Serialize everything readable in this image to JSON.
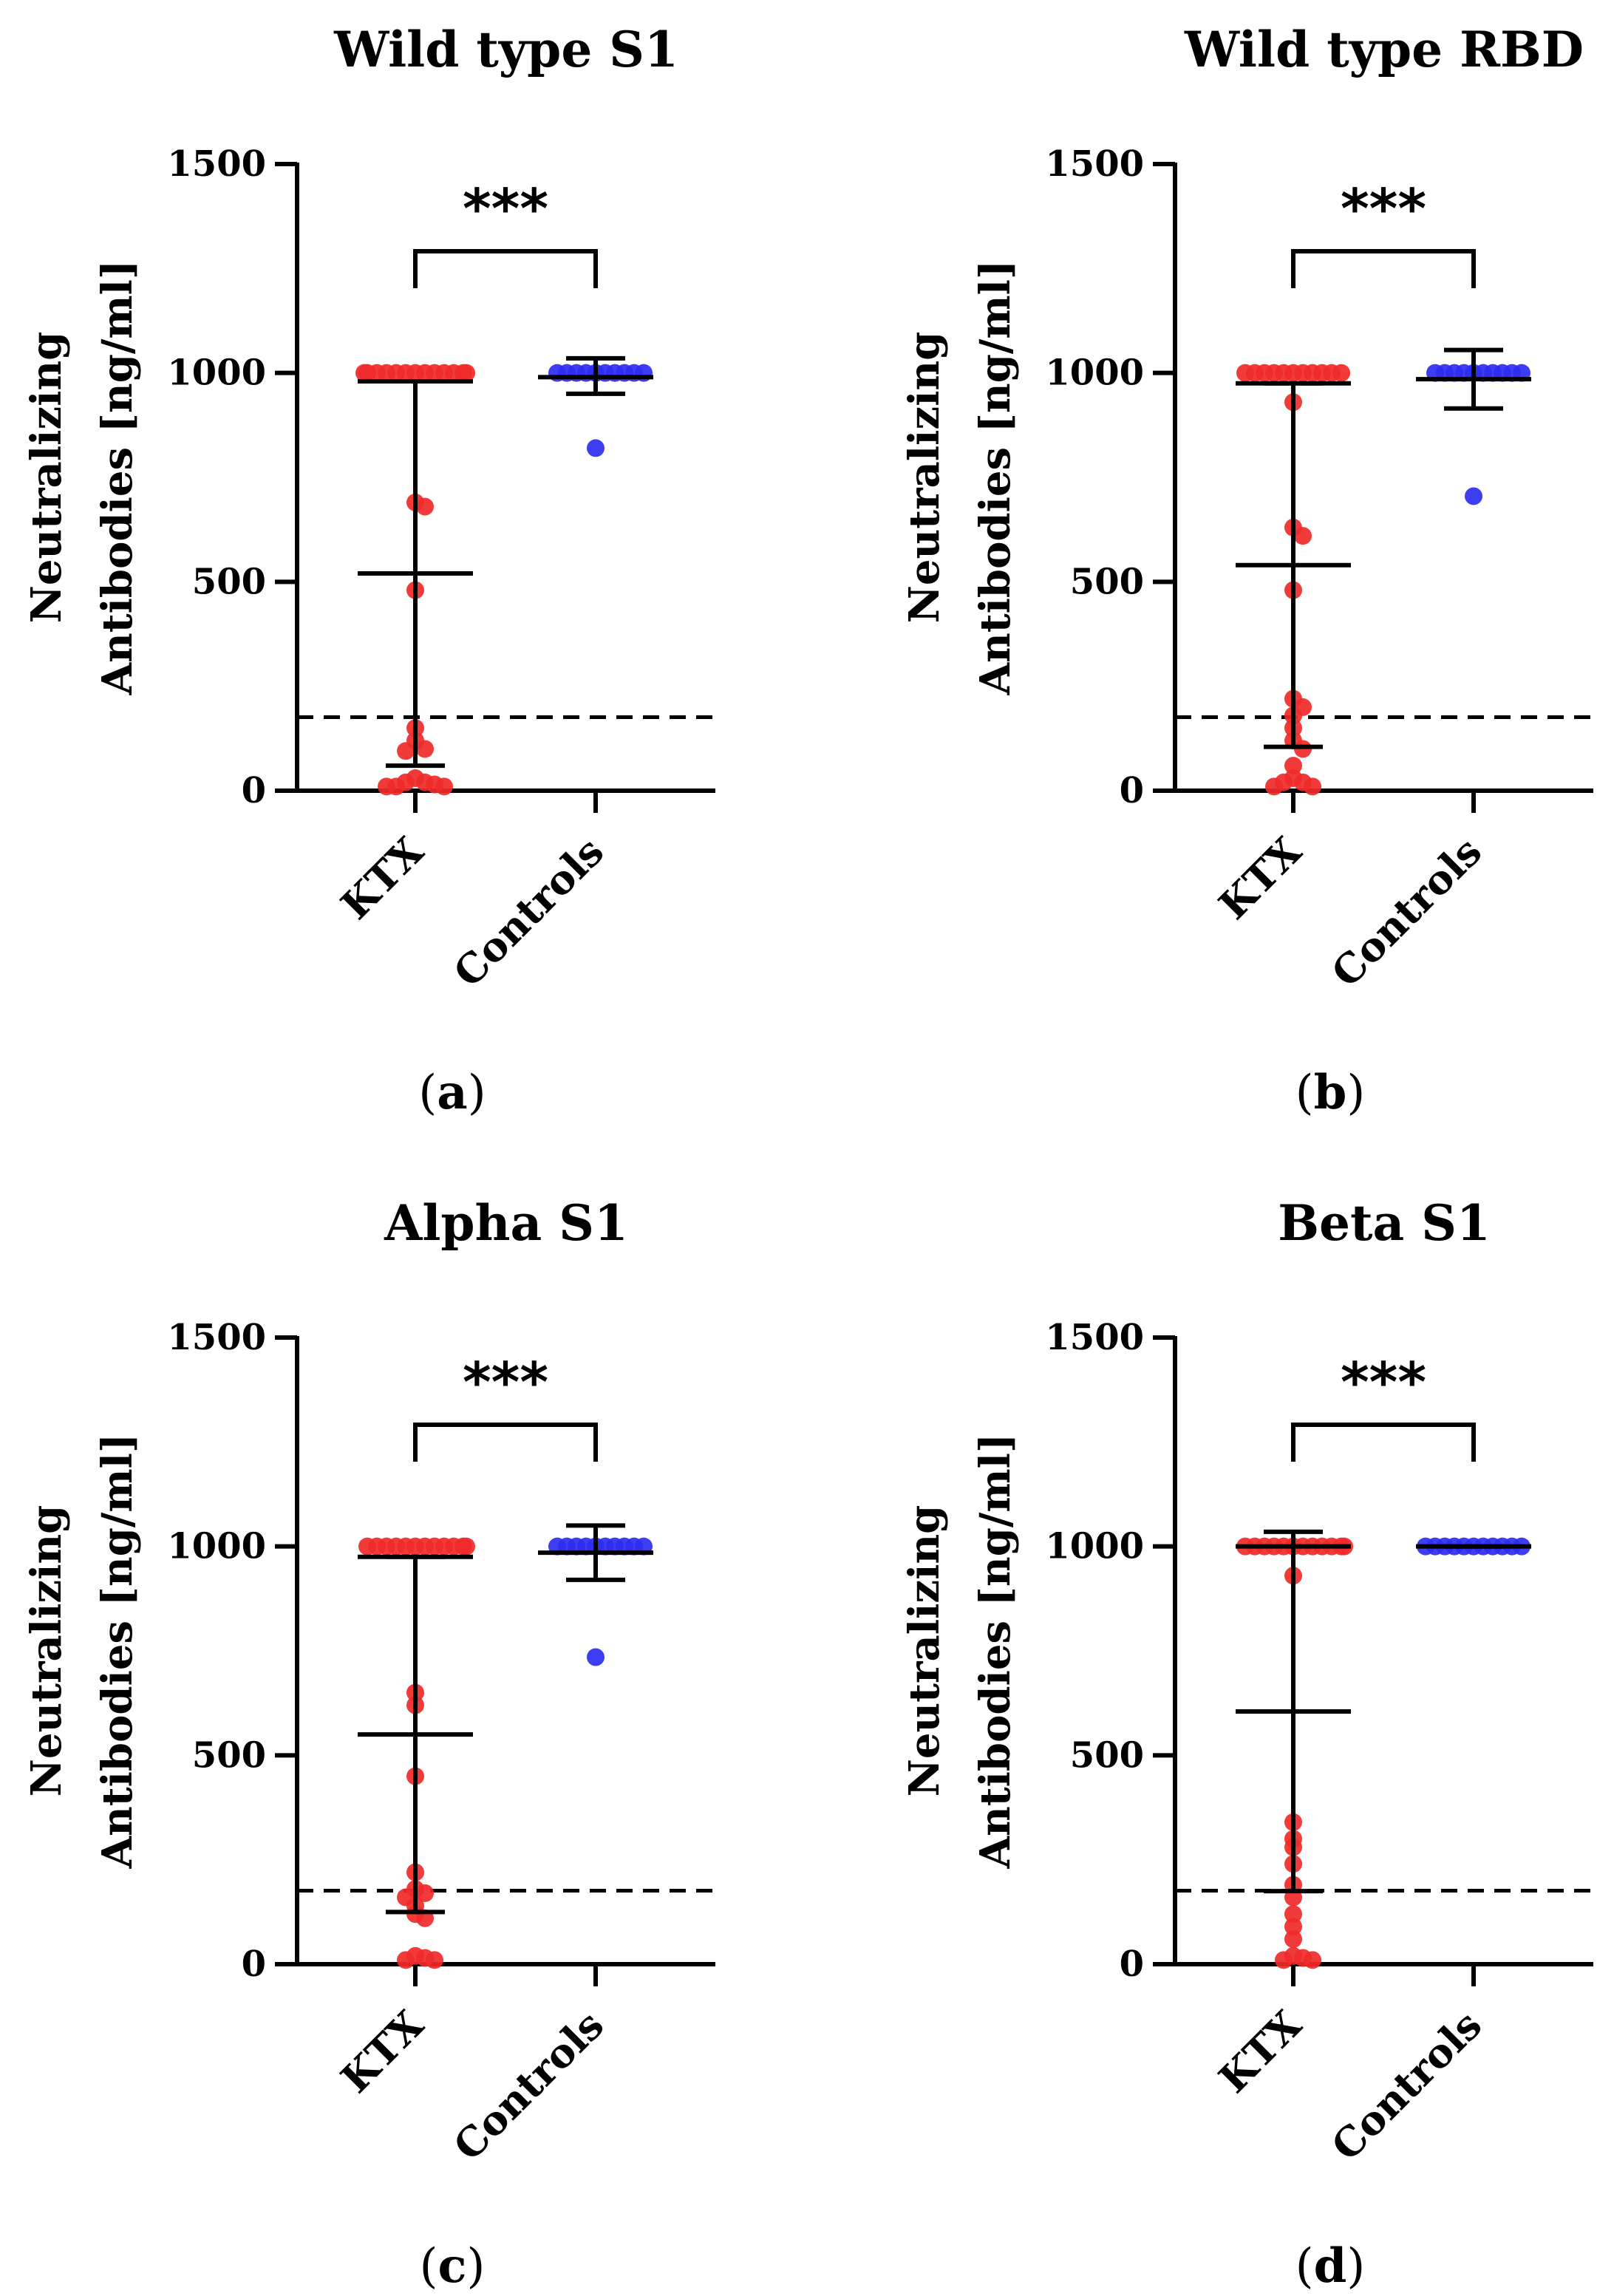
{
  "figure": {
    "colors": {
      "ktx": "#f02a2a",
      "controls": "#2d2df0",
      "axis": "#000000"
    }
  },
  "chart_data": [
    {
      "type": "scatter",
      "panel_label": "a",
      "title": "Wild type S1",
      "ylabel_line1": "Neutralizing",
      "ylabel_line2": "Antibodies [ng/ml]",
      "ylim": [
        0,
        1500
      ],
      "yticks": [
        "0",
        "500",
        "1000",
        "1500"
      ],
      "categories": [
        "KTX",
        "Controls"
      ],
      "significance": "***",
      "cutoff": 176,
      "series": [
        {
          "name": "KTX",
          "points": [
            1000,
            1000,
            1000,
            1000,
            1000,
            1000,
            1000,
            1000,
            1000,
            1000,
            1000,
            1000,
            1000,
            690,
            680,
            480,
            150,
            120,
            100,
            95,
            30,
            20,
            20,
            15,
            10,
            10,
            10
          ],
          "median": 980,
          "whisker_low": 60,
          "whisker_high": 980,
          "mean": 520
        },
        {
          "name": "Controls",
          "points": [
            1000,
            1000,
            1000,
            1000,
            1000,
            1000,
            1000,
            1000,
            1000,
            1000,
            820
          ],
          "median": 990,
          "whisker_low": 950,
          "whisker_high": 1035,
          "mean": 990
        }
      ]
    },
    {
      "type": "scatter",
      "panel_label": "b",
      "title": "Wild type RBD",
      "ylabel_line1": "Neutralizing",
      "ylabel_line2": "Antibodies [ng/ml]",
      "ylim": [
        0,
        1500
      ],
      "yticks": [
        "0",
        "500",
        "1000",
        "1500"
      ],
      "categories": [
        "KTX",
        "Controls"
      ],
      "significance": "***",
      "cutoff": 176,
      "series": [
        {
          "name": "KTX",
          "points": [
            1000,
            1000,
            1000,
            1000,
            1000,
            1000,
            1000,
            1000,
            1000,
            1000,
            1000,
            930,
            630,
            610,
            480,
            220,
            200,
            180,
            150,
            120,
            100,
            60,
            30,
            20,
            20,
            10,
            10
          ],
          "median": 975,
          "whisker_low": 105,
          "whisker_high": 975,
          "mean": 540
        },
        {
          "name": "Controls",
          "points": [
            1000,
            1000,
            1000,
            1000,
            1000,
            1000,
            1000,
            1000,
            1000,
            1000,
            705
          ],
          "median": 985,
          "whisker_low": 915,
          "whisker_high": 1055,
          "mean": 985
        }
      ]
    },
    {
      "type": "scatter",
      "panel_label": "c",
      "title": "Alpha S1",
      "ylabel_line1": "Neutralizing",
      "ylabel_line2": "Antibodies [ng/ml]",
      "ylim": [
        0,
        1500
      ],
      "yticks": [
        "0",
        "500",
        "1000",
        "1500"
      ],
      "categories": [
        "KTX",
        "Controls"
      ],
      "significance": "***",
      "cutoff": 176,
      "series": [
        {
          "name": "KTX",
          "points": [
            1000,
            1000,
            1000,
            1000,
            1000,
            1000,
            1000,
            1000,
            1000,
            1000,
            1000,
            1000,
            650,
            620,
            450,
            220,
            180,
            170,
            160,
            140,
            120,
            110,
            20,
            15,
            10,
            10
          ],
          "median": 975,
          "whisker_low": 125,
          "whisker_high": 975,
          "mean": 550
        },
        {
          "name": "Controls",
          "points": [
            1000,
            1000,
            1000,
            1000,
            1000,
            1000,
            1000,
            1000,
            1000,
            1000,
            735
          ],
          "median": 985,
          "whisker_low": 920,
          "whisker_high": 1050,
          "mean": 985
        }
      ]
    },
    {
      "type": "scatter",
      "panel_label": "d",
      "title": "Beta S1",
      "ylabel_line1": "Neutralizing",
      "ylabel_line2": "Antibodies [ng/ml]",
      "ylim": [
        0,
        1500
      ],
      "yticks": [
        "0",
        "500",
        "1000",
        "1500"
      ],
      "categories": [
        "KTX",
        "Controls"
      ],
      "significance": "***",
      "cutoff": 176,
      "series": [
        {
          "name": "KTX",
          "points": [
            1000,
            1000,
            1000,
            1000,
            1000,
            1000,
            1000,
            1000,
            1000,
            1000,
            1000,
            1000,
            930,
            340,
            300,
            280,
            240,
            190,
            160,
            120,
            90,
            60,
            20,
            15,
            10,
            10
          ],
          "median": 1000,
          "whisker_low": 175,
          "whisker_high": 1035,
          "mean": 605
        },
        {
          "name": "Controls",
          "points": [
            1000,
            1000,
            1000,
            1000,
            1000,
            1000,
            1000,
            1000,
            1000,
            1000,
            1000
          ],
          "median": 1000,
          "whisker_low": 1000,
          "whisker_high": 1000,
          "mean": 1000
        }
      ]
    }
  ]
}
